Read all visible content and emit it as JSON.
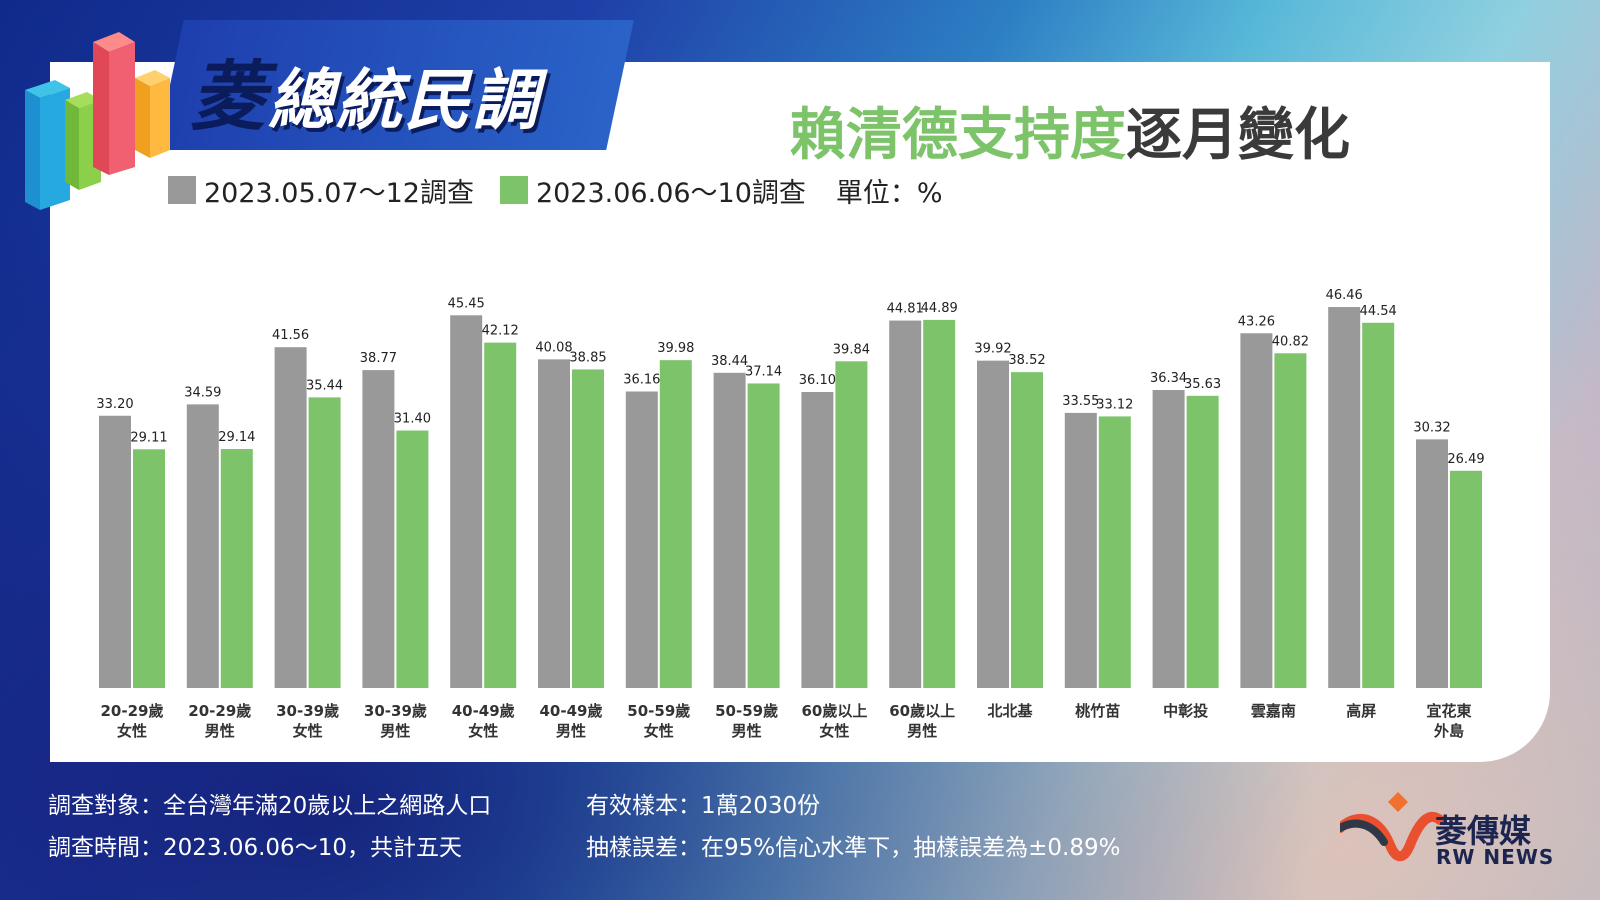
{
  "logo": {
    "first_char": "菱",
    "rest": "總統民調"
  },
  "title": {
    "highlight": "賴清德支持度",
    "rest": "逐月變化"
  },
  "legend": {
    "items": [
      "2023.05.07～12調查",
      "2023.06.06～10調查"
    ],
    "unit": "單位：%"
  },
  "footer": {
    "target": "調查對象：全台灣年滿20歲以上之網路人口",
    "period": "調查時間：2023.06.06～10，共計五天",
    "sample": "有效樣本：1萬2030份",
    "error": "抽樣誤差：在95%信心水準下，抽樣誤差為±0.89%"
  },
  "brand": {
    "cn": "菱傳媒",
    "en": "RW NEWS"
  },
  "colors": {
    "series1": "#999999",
    "series2": "#7cc36a",
    "title_accent": "#7cc36a"
  },
  "chart_data": {
    "type": "bar",
    "categories": [
      [
        "20-29歲",
        "女性"
      ],
      [
        "20-29歲",
        "男性"
      ],
      [
        "30-39歲",
        "女性"
      ],
      [
        "30-39歲",
        "男性"
      ],
      [
        "40-49歲",
        "女性"
      ],
      [
        "40-49歲",
        "男性"
      ],
      [
        "50-59歲",
        "女性"
      ],
      [
        "50-59歲",
        "男性"
      ],
      [
        "60歲以上",
        "女性"
      ],
      [
        "60歲以上",
        "男性"
      ],
      [
        "北北基"
      ],
      [
        "桃竹苗"
      ],
      [
        "中彰投"
      ],
      [
        "雲嘉南"
      ],
      [
        "高屏"
      ],
      [
        "宜花東",
        "外島"
      ]
    ],
    "series": [
      {
        "name": "2023.05.07～12調查",
        "labels": [
          "33.20",
          "34.59",
          "41.56",
          "38.77",
          "45.45",
          "40.08",
          "36.16",
          "38.44",
          "36.10",
          "44.81",
          "39.92",
          "33.55",
          "36.34",
          "43.26",
          "46.46",
          "30.32"
        ],
        "values": [
          33.2,
          34.59,
          41.56,
          38.77,
          45.45,
          40.08,
          36.16,
          38.44,
          36.1,
          44.81,
          39.92,
          33.55,
          36.34,
          43.26,
          46.46,
          30.32
        ]
      },
      {
        "name": "2023.06.06～10調查",
        "labels": [
          "29.11",
          "29.14",
          "35.44",
          "31.40",
          "42.12",
          "38.85",
          "39.98",
          "37.14",
          "39.84",
          "44.89",
          "38.52",
          "33.12",
          "35.63",
          "40.82",
          "44.54",
          "26.49"
        ],
        "values": [
          29.11,
          29.14,
          35.44,
          31.4,
          42.12,
          38.85,
          39.98,
          37.14,
          39.84,
          44.89,
          38.52,
          33.12,
          35.63,
          40.82,
          44.54,
          26.49
        ]
      }
    ],
    "ylim": [
      0,
      50
    ],
    "grid": false,
    "legend_position": "top-left"
  }
}
